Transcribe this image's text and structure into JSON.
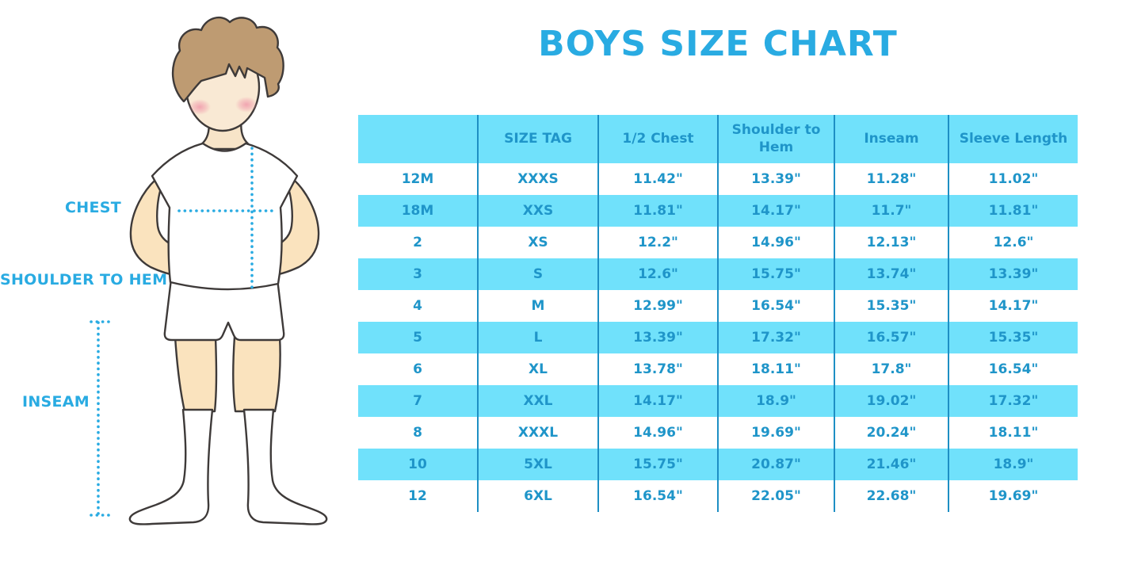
{
  "chart_data": {
    "type": "table",
    "title": "BOYS SIZE CHART",
    "columns": [
      "",
      "SIZE TAG",
      "1/2 Chest",
      "Shoulder to Hem",
      "Inseam",
      "Sleeve Length"
    ],
    "rows": [
      [
        "12M",
        "XXXS",
        "11.42\"",
        "13.39\"",
        "11.28\"",
        "11.02\""
      ],
      [
        "18M",
        "XXS",
        "11.81\"",
        "14.17\"",
        "11.7\"",
        "11.81\""
      ],
      [
        "2",
        "XS",
        "12.2\"",
        "14.96\"",
        "12.13\"",
        "12.6\""
      ],
      [
        "3",
        "S",
        "12.6\"",
        "15.75\"",
        "13.74\"",
        "13.39\""
      ],
      [
        "4",
        "M",
        "12.99\"",
        "16.54\"",
        "15.35\"",
        "14.17\""
      ],
      [
        "5",
        "L",
        "13.39\"",
        "17.32\"",
        "16.57\"",
        "15.35\""
      ],
      [
        "6",
        "XL",
        "13.78\"",
        "18.11\"",
        "17.8\"",
        "16.54\""
      ],
      [
        "7",
        "XXL",
        "14.17\"",
        "18.9\"",
        "19.02\"",
        "17.32\""
      ],
      [
        "8",
        "XXXL",
        "14.96\"",
        "19.69\"",
        "20.24\"",
        "18.11\""
      ],
      [
        "10",
        "5XL",
        "15.75\"",
        "20.87\"",
        "21.46\"",
        "18.9\""
      ],
      [
        "12",
        "6XL",
        "16.54\"",
        "22.05\"",
        "22.68\"",
        "19.69\""
      ]
    ],
    "layout": {
      "row_stripes": true,
      "stripe_start": "white",
      "header_background": "light-blue"
    }
  },
  "figure": {
    "labels": {
      "chest": "CHEST",
      "shoulder_to_hem": "SHOULDER TO HEM",
      "inseam": "INSEAM"
    }
  },
  "colors": {
    "accent_blue": "#29ABE2",
    "table_text_blue": "#1F95C9",
    "row_stripe_blue": "#70E1FB",
    "grid_line_blue": "#1E8FC4",
    "skin": "#FAE3BE",
    "face_skin": "#F9E9D4",
    "hair_brown": "#BE9B72",
    "outline": "#3E3A39",
    "cheek_pink": "#F099AA",
    "background": "#FFFFFF"
  }
}
